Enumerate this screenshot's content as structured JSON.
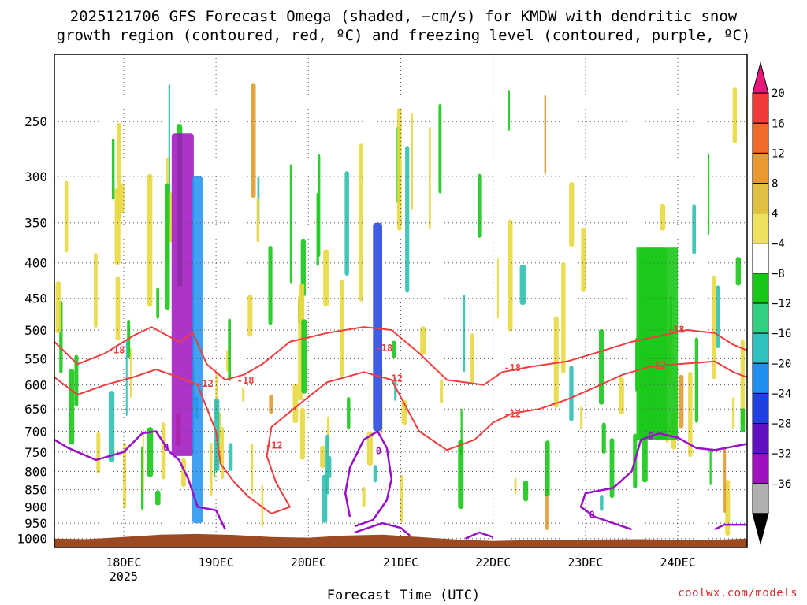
{
  "title_line1": "2025121706 GFS Forecast Omega (shaded, −cm/s) for KMDW with dendritic snow",
  "title_line2": "growth region (contoured, red, ºC) and freezing level (contoured, purple, ºC)",
  "credit": "coolwx.com/models",
  "colors": {
    "contour_red": "#ef3e3e",
    "contour_purple": "#9a0fc8",
    "ground": "#9c4a24",
    "grid": "#555555"
  },
  "chart_data": {
    "type": "heatmap",
    "xlabel": "Forecast Time (UTC)",
    "ylabel": "",
    "y_axis_scale": "pressure (log, inverted)",
    "y_range_hpa": [
      1030,
      200
    ],
    "y_ticks": [
      250,
      300,
      350,
      400,
      450,
      500,
      550,
      600,
      650,
      700,
      750,
      800,
      850,
      900,
      950,
      1000
    ],
    "x_range_days": [
      "2025-12-17 06Z",
      "2025-12-24 18Z"
    ],
    "x_ticks": [
      {
        "label": "18DEC",
        "sub": "2025",
        "date": "2025-12-18 00Z"
      },
      {
        "label": "19DEC",
        "sub": "",
        "date": "2025-12-19 00Z"
      },
      {
        "label": "20DEC",
        "sub": "",
        "date": "2025-12-20 00Z"
      },
      {
        "label": "21DEC",
        "sub": "",
        "date": "2025-12-21 00Z"
      },
      {
        "label": "22DEC",
        "sub": "",
        "date": "2025-12-22 00Z"
      },
      {
        "label": "23DEC",
        "sub": "",
        "date": "2025-12-23 00Z"
      },
      {
        "label": "24DEC",
        "sub": "",
        "date": "2025-12-24 00Z"
      }
    ],
    "grid": true,
    "colorbar": {
      "labels": [
        "20",
        "16",
        "12",
        "8",
        "4",
        "−4",
        "−8",
        "−12",
        "−16",
        "−20",
        "−24",
        "−28",
        "−32",
        "−36"
      ],
      "colors_top_to_bottom": [
        "#e8157a",
        "#f03a3a",
        "#f06a2a",
        "#e89a30",
        "#e0c040",
        "#f0e060",
        "#ffffff",
        "#18c818",
        "#30d080",
        "#30c0c0",
        "#2090f0",
        "#2040e0",
        "#6010c0",
        "#a010c0",
        "#b0b0b0",
        "#000000"
      ]
    },
    "contour_labels_red": [
      {
        "text": "-18",
        "x": 17.92,
        "p": 535
      },
      {
        "text": "-12",
        "x": 18.88,
        "p": 598
      },
      {
        "text": "-18",
        "x": 19.32,
        "p": 592
      },
      {
        "text": "-12",
        "x": 19.63,
        "p": 735
      },
      {
        "text": "-18",
        "x": 20.82,
        "p": 532
      },
      {
        "text": "-12",
        "x": 20.93,
        "p": 588
      },
      {
        "text": "-18",
        "x": 22.21,
        "p": 568
      },
      {
        "text": "-12",
        "x": 22.21,
        "p": 662
      },
      {
        "text": "-18",
        "x": 23.98,
        "p": 500
      },
      {
        "text": "-12",
        "x": 23.78,
        "p": 563
      }
    ],
    "contour_labels_purple": [
      {
        "text": "0",
        "x": 18.46,
        "p": 740
      },
      {
        "text": "0",
        "x": 20.76,
        "p": 748
      },
      {
        "text": "0",
        "x": 23.07,
        "p": 925
      },
      {
        "text": "0",
        "x": 23.71,
        "p": 712
      }
    ],
    "omega_features": [
      {
        "x0": 18.52,
        "x1": 18.76,
        "p_top": 260,
        "p_bot": 760,
        "value": -30
      },
      {
        "x0": 18.74,
        "x1": 18.86,
        "p_top": 300,
        "p_bot": 950,
        "value": -18
      },
      {
        "x0": 20.7,
        "x1": 20.8,
        "p_top": 350,
        "p_bot": 700,
        "value": -20
      },
      {
        "x0": 23.58,
        "x1": 23.88,
        "p_top": 380,
        "p_bot": 720,
        "value": -10
      }
    ]
  }
}
